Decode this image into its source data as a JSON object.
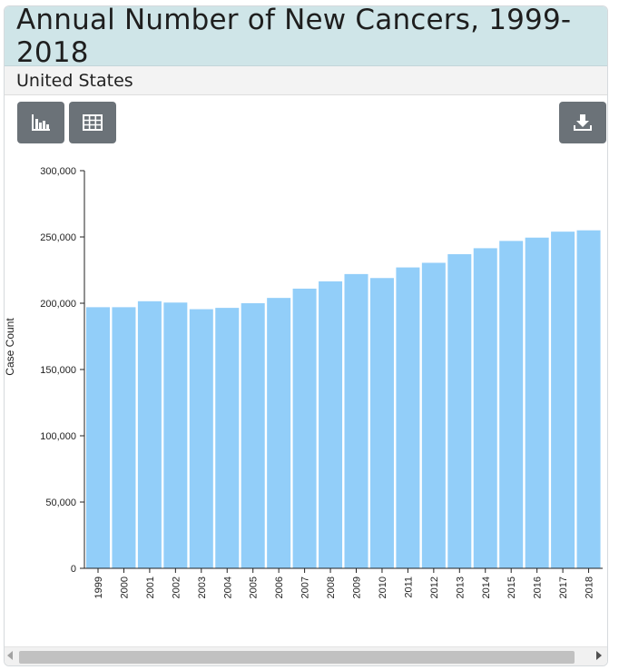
{
  "header": {
    "title": "Annual Number of New Cancers, 1999-2018"
  },
  "subheader": {
    "region": "United States"
  },
  "toolbar": {
    "chart_view_icon": "bar-chart-icon",
    "table_view_icon": "table-icon",
    "download_icon": "download-icon"
  },
  "colors": {
    "bar": "#92cef9",
    "title_bg": "#cfe5e8",
    "button_bg": "#6b7278"
  },
  "chart_data": {
    "type": "bar",
    "title": "Annual Number of New Cancers, 1999-2018",
    "subtitle": "United States",
    "xlabel": "",
    "ylabel": "Case Count",
    "ylim": [
      0,
      300000
    ],
    "yticks": [
      0,
      50000,
      100000,
      150000,
      200000,
      250000,
      300000
    ],
    "ytick_labels": [
      "0",
      "50,000",
      "100,000",
      "150,000",
      "200,000",
      "250,000",
      "300,000"
    ],
    "categories": [
      "1999",
      "2000",
      "2001",
      "2002",
      "2003",
      "2004",
      "2005",
      "2006",
      "2007",
      "2008",
      "2009",
      "2010",
      "2011",
      "2012",
      "2013",
      "2014",
      "2015",
      "2016",
      "2017",
      "2018"
    ],
    "values": [
      197000,
      197000,
      201500,
      200500,
      195500,
      196500,
      200000,
      204000,
      211000,
      216500,
      222000,
      219000,
      227000,
      230500,
      237000,
      241500,
      247000,
      249500,
      254000,
      255000
    ],
    "grid": false,
    "legend": "none"
  }
}
